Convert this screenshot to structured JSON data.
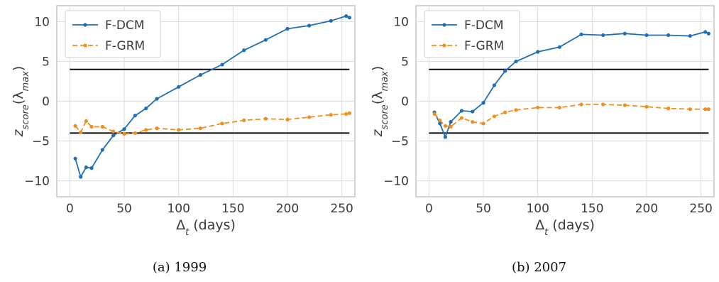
{
  "chart_data": [
    {
      "type": "line",
      "caption": "(a) 1999",
      "xlabel_base": "Δ",
      "xlabel_sub": "t",
      "xlabel_rest": " (days)",
      "ylabel_base": "z",
      "ylabel_sub": "score",
      "ylabel_rest": "(λ",
      "ylabel_sub2": "max",
      "ylabel_close": ")",
      "xlim": [
        -12,
        262
      ],
      "ylim": [
        -12,
        12
      ],
      "xticks": [
        "0",
        "50",
        "100",
        "150",
        "200",
        "250"
      ],
      "yticks": [
        "−10",
        "−5",
        "0",
        "5",
        "10"
      ],
      "grid": true,
      "legend_position": "top-left",
      "hlines": [
        4,
        -4
      ],
      "series": [
        {
          "name": "F-DCM",
          "color": "#1f6fb4",
          "style": "solid",
          "x": [
            5,
            10,
            15,
            20,
            30,
            40,
            50,
            60,
            70,
            80,
            100,
            120,
            140,
            160,
            180,
            200,
            220,
            240,
            254,
            257
          ],
          "y": [
            -7.2,
            -9.5,
            -8.3,
            -8.4,
            -6.1,
            -4.3,
            -3.5,
            -1.8,
            -0.9,
            0.3,
            1.8,
            3.3,
            4.6,
            6.4,
            7.7,
            9.1,
            9.5,
            10.1,
            10.7,
            10.5
          ]
        },
        {
          "name": "F-GRM",
          "color": "#f28e1c",
          "style": "dashed",
          "x": [
            5,
            10,
            15,
            20,
            30,
            40,
            50,
            60,
            70,
            80,
            100,
            120,
            140,
            160,
            180,
            200,
            220,
            240,
            254,
            257
          ],
          "y": [
            -3.1,
            -3.9,
            -2.5,
            -3.2,
            -3.2,
            -3.8,
            -4.1,
            -4.0,
            -3.6,
            -3.4,
            -3.6,
            -3.4,
            -2.8,
            -2.4,
            -2.2,
            -2.3,
            -2.0,
            -1.7,
            -1.6,
            -1.5
          ]
        }
      ]
    },
    {
      "type": "line",
      "caption": "(b) 2007",
      "xlabel_base": "Δ",
      "xlabel_sub": "t",
      "xlabel_rest": " (days)",
      "ylabel_base": "z",
      "ylabel_sub": "score",
      "ylabel_rest": "(λ",
      "ylabel_sub2": "max",
      "ylabel_close": ")",
      "xlim": [
        -12,
        262
      ],
      "ylim": [
        -12,
        12
      ],
      "xticks": [
        "0",
        "50",
        "100",
        "150",
        "200",
        "250"
      ],
      "yticks": [
        "−10",
        "−5",
        "0",
        "5",
        "10"
      ],
      "grid": true,
      "legend_position": "top-left",
      "hlines": [
        4,
        -4
      ],
      "series": [
        {
          "name": "F-DCM",
          "color": "#1f6fb4",
          "style": "solid",
          "x": [
            5,
            10,
            15,
            20,
            30,
            40,
            50,
            60,
            70,
            80,
            100,
            120,
            140,
            160,
            180,
            200,
            220,
            240,
            254,
            257
          ],
          "y": [
            -1.4,
            -2.8,
            -4.5,
            -2.6,
            -1.2,
            -1.3,
            -0.2,
            2.0,
            3.8,
            5.0,
            6.2,
            6.8,
            8.4,
            8.3,
            8.5,
            8.3,
            8.3,
            8.2,
            8.7,
            8.5
          ]
        },
        {
          "name": "F-GRM",
          "color": "#f28e1c",
          "style": "dashed",
          "x": [
            5,
            10,
            15,
            20,
            30,
            40,
            50,
            60,
            70,
            80,
            100,
            120,
            140,
            160,
            180,
            200,
            220,
            240,
            254,
            257
          ],
          "y": [
            -1.6,
            -2.4,
            -3.1,
            -3.2,
            -2.1,
            -2.6,
            -2.8,
            -1.9,
            -1.4,
            -1.1,
            -0.8,
            -0.8,
            -0.4,
            -0.4,
            -0.5,
            -0.7,
            -0.9,
            -1.0,
            -1.0,
            -1.0
          ]
        }
      ]
    }
  ]
}
